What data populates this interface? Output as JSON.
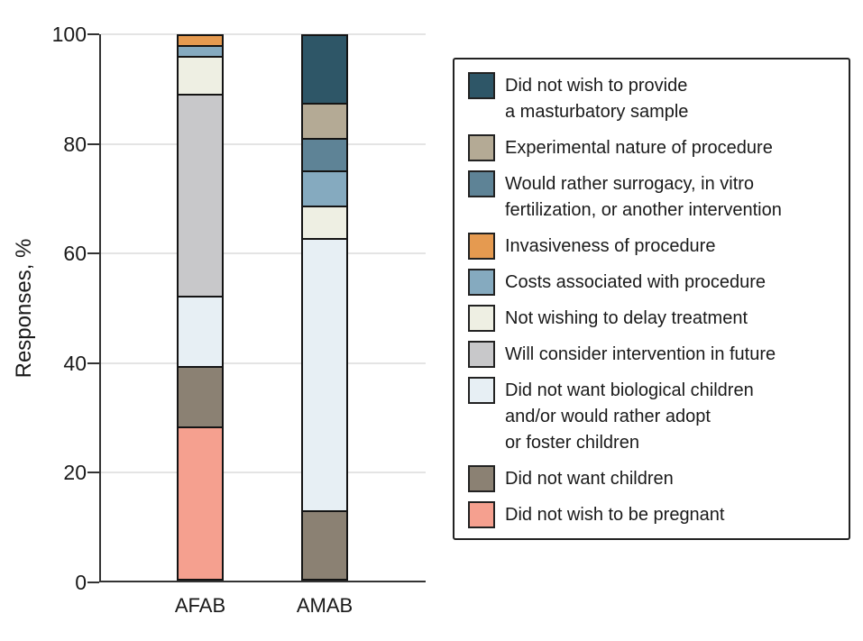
{
  "chart_data": {
    "type": "bar",
    "stacked": true,
    "ylabel": "Responses, %",
    "ylim": [
      0,
      100
    ],
    "yticks": [
      0,
      20,
      40,
      60,
      80,
      100
    ],
    "grid": true,
    "legend_position": "right",
    "categories": [
      "AFAB",
      "AMAB"
    ],
    "series": [
      {
        "name": "Did not wish to provide a masturbatory sample",
        "lines": [
          "Did not wish to provide",
          "a masturbatory sample"
        ],
        "color": "#2E5667",
        "values": [
          0,
          12.5
        ]
      },
      {
        "name": "Experimental nature of procedure",
        "lines": [
          "Experimental nature of procedure"
        ],
        "color": "#B4AA95",
        "values": [
          0,
          6.5
        ]
      },
      {
        "name": "Would rather surrogacy, in vitro fertilization, or another intervention",
        "lines": [
          "Would rather surrogacy, in vitro",
          "fertilization, or another intervention"
        ],
        "color": "#5E8396",
        "values": [
          0,
          6
        ]
      },
      {
        "name": "Invasiveness of procedure",
        "lines": [
          "Invasiveness of procedure"
        ],
        "color": "#E59A50",
        "values": [
          2,
          0
        ]
      },
      {
        "name": "Costs associated with procedure",
        "lines": [
          "Costs associated with procedure"
        ],
        "color": "#85AABF",
        "values": [
          2,
          6.5
        ]
      },
      {
        "name": "Not wishing to delay treatment",
        "lines": [
          "Not wishing to delay treatment"
        ],
        "color": "#EEEFE3",
        "values": [
          7,
          6
        ]
      },
      {
        "name": "Will consider intervention in future",
        "lines": [
          "Will consider intervention in future"
        ],
        "color": "#C8C8CA",
        "values": [
          37,
          0
        ]
      },
      {
        "name": "Did not want biological children and/or would rather adopt or foster children",
        "lines": [
          "Did not want biological children",
          "and/or would rather adopt",
          "or foster children"
        ],
        "color": "#E7EFF4",
        "values": [
          13,
          50
        ]
      },
      {
        "name": "Did not want children",
        "lines": [
          "Did not want children"
        ],
        "color": "#8B8173",
        "values": [
          11,
          12.5
        ]
      },
      {
        "name": "Did not wish to be pregnant",
        "lines": [
          "Did not wish to be pregnant"
        ],
        "color": "#F5A08F",
        "values": [
          28,
          0
        ]
      }
    ]
  },
  "colors": {
    "axis": "#333333",
    "gridline": "#e4e4e4",
    "segment_border": "#141414",
    "legend_border": "#222222",
    "text": "#1a1a1a",
    "background": "#ffffff"
  }
}
